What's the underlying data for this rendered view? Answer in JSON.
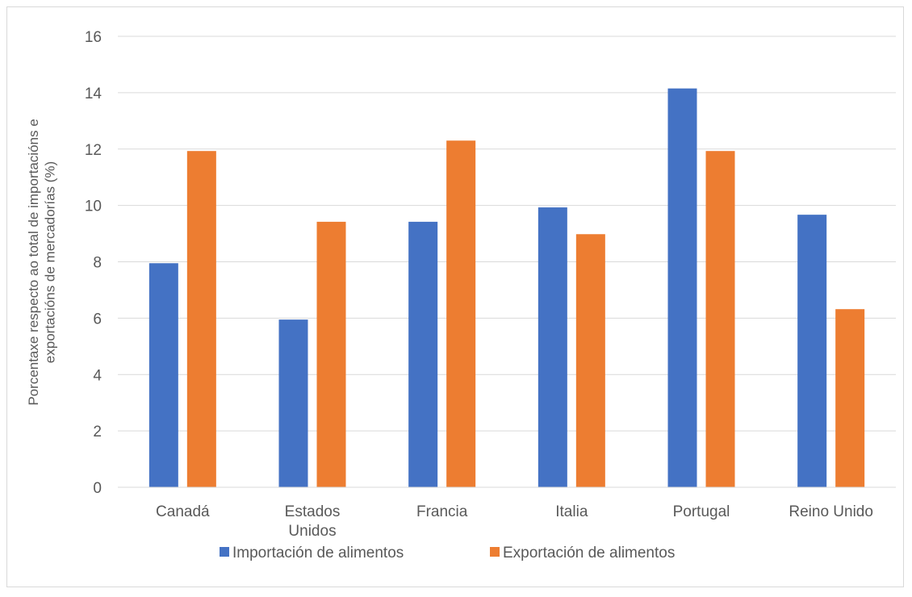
{
  "chart_data": {
    "type": "bar",
    "categories": [
      [
        "Canadá"
      ],
      [
        "Estados",
        "Unidos"
      ],
      [
        "Francia"
      ],
      [
        "Italia"
      ],
      [
        "Portugal"
      ],
      [
        "Reino Unido"
      ]
    ],
    "series": [
      {
        "name": "Importación de alimentos",
        "color": "#4472c4",
        "values": [
          7.95,
          5.95,
          9.42,
          9.93,
          14.15,
          9.67
        ]
      },
      {
        "name": "Exportación de alimentos",
        "color": "#ed7d31",
        "values": [
          11.93,
          9.42,
          12.3,
          8.98,
          11.93,
          6.32
        ]
      }
    ],
    "ylabel": [
      "Porcentaxe respecto ao total de importacións e",
      "exportacións de mercadorías (%)"
    ],
    "ylim": [
      0,
      16
    ],
    "yticks": [
      0,
      2,
      4,
      6,
      8,
      10,
      12,
      14,
      16
    ],
    "grid": true,
    "legend_position": "bottom",
    "gridline_color": "#d9d9d9"
  }
}
